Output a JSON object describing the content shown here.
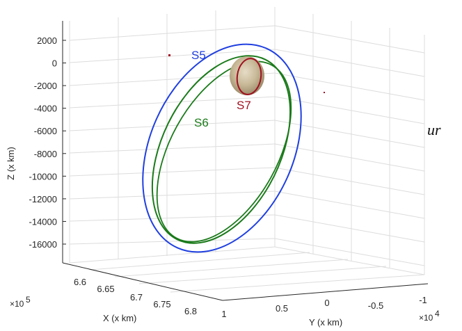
{
  "chart_data": {
    "type": "line",
    "title": "",
    "xlabel": "X (x km)",
    "ylabel": "Y (x km)",
    "zlabel": "Z (x km)",
    "x_multiplier": "×10^5",
    "y_multiplier": "×10^4",
    "x_ticks": [
      "6.6",
      "6.65",
      "6.7",
      "6.75",
      "6.8"
    ],
    "y_ticks": [
      "1",
      "0.5",
      "0",
      "-0.5",
      "-1"
    ],
    "z_ticks": [
      "2000",
      "0",
      "-2000",
      "-4000",
      "-6000",
      "-8000",
      "-10000",
      "-12000",
      "-14000",
      "-16000"
    ],
    "zlim": [
      -17000,
      3000
    ],
    "grid": true,
    "series": [
      {
        "name": "S5",
        "color": "#1f3fe0"
      },
      {
        "name": "S6",
        "color": "#1a7a1a"
      },
      {
        "name": "S7",
        "color": "#a01020"
      }
    ]
  },
  "stray_text": "ur"
}
